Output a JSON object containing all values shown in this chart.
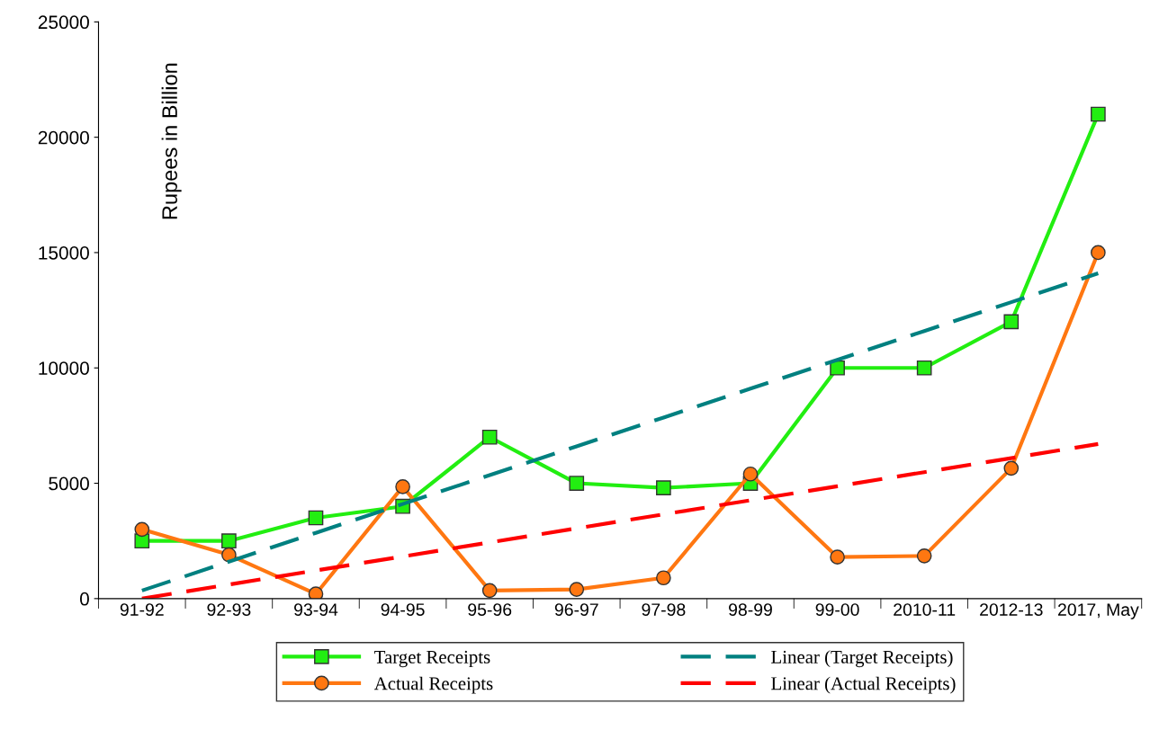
{
  "chart_data": {
    "type": "line",
    "ylabel": "Rupees in Billion",
    "categories": [
      "91-92",
      "92-93",
      "93-94",
      "94-95",
      "95-96",
      "96-97",
      "97-98",
      "98-99",
      "99-00",
      "2010-11",
      "2012-13",
      "2017, May"
    ],
    "series": [
      {
        "name": "Target Receipts",
        "color": "#22ee11",
        "marker": "square",
        "line_style": "solid",
        "values": [
          2500,
          2500,
          3500,
          4000,
          7000,
          5000,
          4800,
          5000,
          10000,
          10000,
          12000,
          21000
        ]
      },
      {
        "name": "Actual Receipts",
        "color": "#ff7711",
        "marker": "circle",
        "line_style": "solid",
        "values": [
          3000,
          1900,
          200,
          4850,
          350,
          400,
          900,
          5400,
          1800,
          1850,
          5650,
          15000
        ]
      },
      {
        "name": "Linear (Target Receipts)",
        "color": "#008080",
        "marker": "none",
        "line_style": "dashed",
        "values": [
          350,
          1600,
          2850,
          4100,
          5350,
          6600,
          7850,
          9100,
          10350,
          11600,
          12850,
          14100
        ]
      },
      {
        "name": "Linear (Actual Receipts)",
        "color": "#ff0000",
        "marker": "none",
        "line_style": "dashed",
        "values": [
          0,
          609,
          1218,
          1827,
          2436,
          3045,
          3654,
          4263,
          4872,
          5481,
          6090,
          6700
        ]
      }
    ],
    "ylim": [
      0,
      25000
    ],
    "yticks": [
      0,
      5000,
      10000,
      15000,
      20000,
      25000
    ],
    "grid": false,
    "legend": "bottom"
  }
}
